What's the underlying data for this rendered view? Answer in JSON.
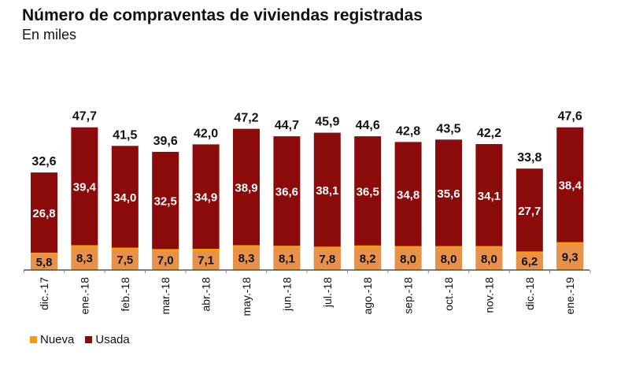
{
  "chart_data": {
    "type": "bar",
    "stacked": true,
    "title": "Número de compraventas de viviendas registradas",
    "subtitle": "En miles",
    "xlabel": "",
    "ylabel": "",
    "ylim": [
      0,
      50
    ],
    "grid": false,
    "legend_position": "bottom-left",
    "categories": [
      "dic.-17",
      "ene.-18",
      "feb.-18",
      "mar.-18",
      "abr.-18",
      "may.-18",
      "jun.-18",
      "jul.-18",
      "ago.-18",
      "sep.-18",
      "oct.-18",
      "nov.-18",
      "dic.-18",
      "ene.-19"
    ],
    "series": [
      {
        "name": "Nueva",
        "color": "#f39c12",
        "label_bg": "#e8914a",
        "values": [
          5.8,
          8.3,
          7.5,
          7.0,
          7.1,
          8.3,
          8.1,
          7.8,
          8.2,
          8.0,
          8.0,
          8.0,
          6.2,
          9.3
        ],
        "labels": [
          "5,8",
          "8,3",
          "7,5",
          "7,0",
          "7,1",
          "8,3",
          "8,1",
          "7,8",
          "8,2",
          "8,0",
          "8,0",
          "8,0",
          "6,2",
          "9,3"
        ]
      },
      {
        "name": "Usada",
        "color": "#8b0a0a",
        "values": [
          26.8,
          39.4,
          34.0,
          32.5,
          34.9,
          38.9,
          36.6,
          38.1,
          36.5,
          34.8,
          35.6,
          34.1,
          27.7,
          38.4
        ],
        "labels": [
          "26,8",
          "39,4",
          "34,0",
          "32,5",
          "34,9",
          "38,9",
          "36,6",
          "38,1",
          "36,5",
          "34,8",
          "35,6",
          "34,1",
          "27,7",
          "38,4"
        ]
      }
    ],
    "totals": [
      32.6,
      47.7,
      41.5,
      39.6,
      42.0,
      47.2,
      44.7,
      45.9,
      44.6,
      42.8,
      43.5,
      42.2,
      33.8,
      47.6
    ],
    "total_labels": [
      "32,6",
      "47,7",
      "41,5",
      "39,6",
      "42,0",
      "47,2",
      "44,7",
      "45,9",
      "44,6",
      "42,8",
      "43,5",
      "42,2",
      "33,8",
      "47,6"
    ]
  }
}
